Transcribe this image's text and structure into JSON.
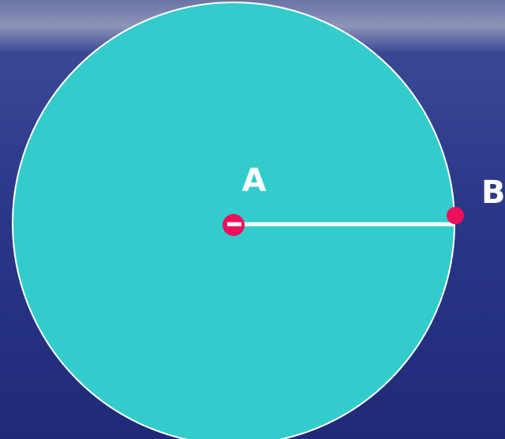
{
  "labels": {
    "center": "A",
    "edge": "B"
  }
}
